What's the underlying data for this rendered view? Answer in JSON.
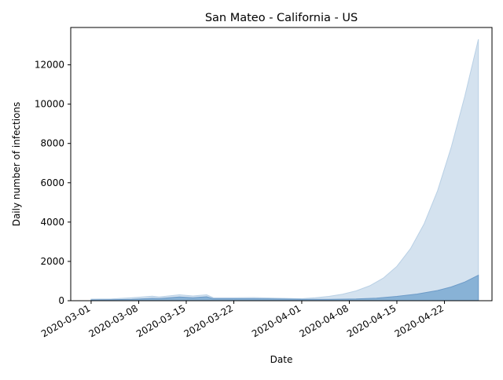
{
  "chart_data": {
    "type": "area",
    "title": "San Mateo - California - US",
    "xlabel": "Date",
    "ylabel": "Daily number of infections",
    "xlim": [
      "2020-02-27",
      "2020-04-29"
    ],
    "ylim": [
      0,
      13900
    ],
    "x_ticks": [
      "2020-03-01",
      "2020-03-08",
      "2020-03-15",
      "2020-03-22",
      "2020-04-01",
      "2020-04-08",
      "2020-04-15",
      "2020-04-22"
    ],
    "y_ticks": [
      0,
      2000,
      4000,
      6000,
      8000,
      10000,
      12000
    ],
    "grid": false,
    "legend": "none",
    "series": [
      {
        "role": "upper-band",
        "color": "#d4e2ef",
        "edge_color": "#b9d0e5",
        "points": [
          [
            "2020-03-01",
            80
          ],
          [
            "2020-03-04",
            90
          ],
          [
            "2020-03-07",
            150
          ],
          [
            "2020-03-10",
            230
          ],
          [
            "2020-03-11",
            190
          ],
          [
            "2020-03-14",
            300
          ],
          [
            "2020-03-16",
            240
          ],
          [
            "2020-03-18",
            300
          ],
          [
            "2020-03-19",
            150
          ],
          [
            "2020-03-22",
            150
          ],
          [
            "2020-03-25",
            160
          ],
          [
            "2020-03-28",
            130
          ],
          [
            "2020-04-01",
            100
          ],
          [
            "2020-04-03",
            150
          ],
          [
            "2020-04-05",
            220
          ],
          [
            "2020-04-07",
            330
          ],
          [
            "2020-04-09",
            500
          ],
          [
            "2020-04-11",
            760
          ],
          [
            "2020-04-13",
            1150
          ],
          [
            "2020-04-15",
            1750
          ],
          [
            "2020-04-17",
            2650
          ],
          [
            "2020-04-19",
            3900
          ],
          [
            "2020-04-21",
            5600
          ],
          [
            "2020-04-23",
            7800
          ],
          [
            "2020-04-25",
            10400
          ],
          [
            "2020-04-27",
            13300
          ]
        ]
      },
      {
        "role": "lower-band",
        "color": "#88b2d6",
        "edge_color": "#6d9bc8",
        "points": [
          [
            "2020-03-01",
            40
          ],
          [
            "2020-03-04",
            50
          ],
          [
            "2020-03-07",
            70
          ],
          [
            "2020-03-10",
            120
          ],
          [
            "2020-03-11",
            110
          ],
          [
            "2020-03-14",
            190
          ],
          [
            "2020-03-16",
            150
          ],
          [
            "2020-03-18",
            200
          ],
          [
            "2020-03-19",
            100
          ],
          [
            "2020-03-22",
            100
          ],
          [
            "2020-03-25",
            100
          ],
          [
            "2020-03-28",
            90
          ],
          [
            "2020-04-01",
            70
          ],
          [
            "2020-04-05",
            70
          ],
          [
            "2020-04-09",
            90
          ],
          [
            "2020-04-12",
            130
          ],
          [
            "2020-04-15",
            220
          ],
          [
            "2020-04-18",
            340
          ],
          [
            "2020-04-21",
            520
          ],
          [
            "2020-04-23",
            700
          ],
          [
            "2020-04-25",
            950
          ],
          [
            "2020-04-27",
            1300
          ]
        ]
      }
    ]
  }
}
